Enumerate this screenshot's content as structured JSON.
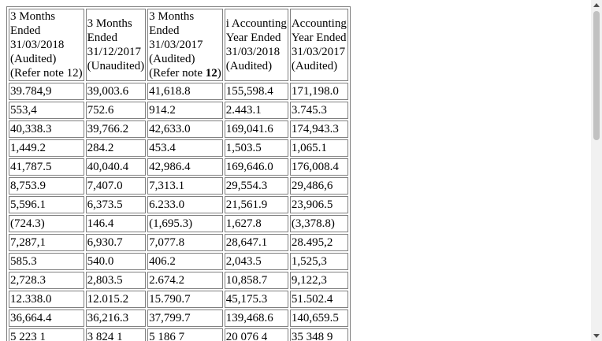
{
  "headers": [
    {
      "lines": [
        "3 Months",
        "Ended",
        "31/03/2018",
        "(Audited)",
        "(Refer note 12)"
      ]
    },
    {
      "lines": [
        "3 Months",
        "Ended",
        "31/12/2017",
        "(Unaudited)"
      ]
    },
    {
      "lines": [
        "3 Months",
        "Ended",
        "31/03/2017",
        "(Audited)"
      ],
      "last_prefix": "(Refer note ",
      "last_bold": "12",
      "last_suffix": ")"
    },
    {
      "lines": [
        "i Accounting",
        "Year Ended",
        "31/03/2018",
        "(Audited)"
      ]
    },
    {
      "lines": [
        "Accounting",
        "Year Ended",
        "31/03/2017",
        "(Audited)"
      ]
    }
  ],
  "rows": [
    [
      "39.784,9",
      "39,003.6",
      "41,618.8",
      "155,598.4",
      "171,198.0"
    ],
    [
      "553,4",
      "752.6",
      "914.2",
      "2.443.1",
      "3.745.3"
    ],
    [
      "40,338.3",
      "39,766.2",
      "42,633.0",
      "169,041.6",
      "174,943.3"
    ],
    [
      "1,449.2",
      "284.2",
      "453.4",
      "1,503.5",
      "1,065.1"
    ],
    [
      "41,787.5",
      "40,040.4",
      "42,986.4",
      "169,646.0",
      "176,008.4"
    ],
    [
      "8,753.9",
      "7,407.0",
      "7,313.1",
      "29,554.3",
      "29,486,6"
    ],
    [
      "5,596.1",
      "6,373.5",
      "6.233.0",
      "21,561.9",
      "23,906.5"
    ],
    [
      "(724.3)",
      "146.4",
      "(1,695.3)",
      "1,627.8",
      "(3,378.8)"
    ],
    [
      "7,287,1",
      "6,930.7",
      "7,077.8",
      "28,647.1",
      "28.495,2"
    ],
    [
      "585.3",
      "540.0",
      "406.2",
      "2,043.5",
      "1,525,3"
    ],
    [
      "2,728.3",
      "2,803.5",
      "2.674.2",
      "10,858.7",
      "9,122,3"
    ],
    [
      "12.338.0",
      "12.015.2",
      "15.790.7",
      "45,175.3",
      "51.502.4"
    ],
    [
      "36,664.4",
      "36,216.3",
      "37,799.7",
      "139,468.6",
      "140,659.5"
    ],
    [
      "5 223 1",
      "3 824 1",
      "5 186 7",
      "20 076 4",
      "35 348 9"
    ]
  ],
  "scrollbar": {
    "up_icon": "triangle-up",
    "down_icon": "triangle-down"
  }
}
